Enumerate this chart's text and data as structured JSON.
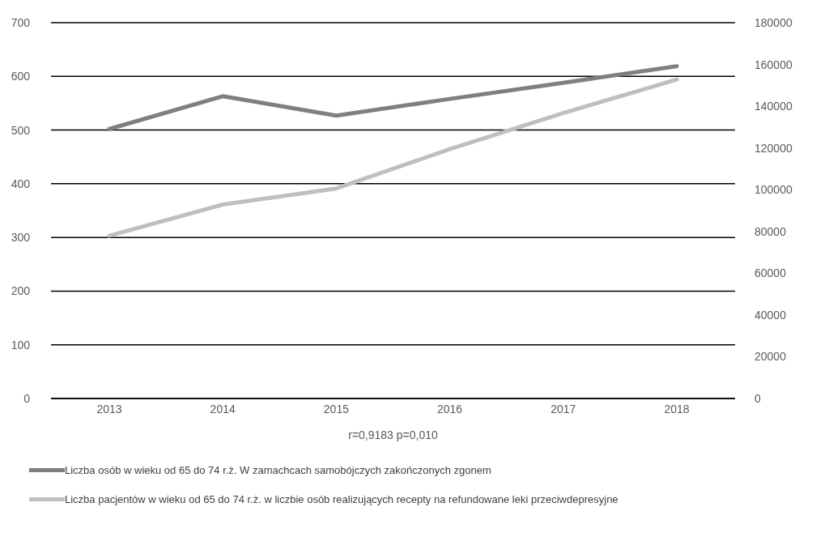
{
  "chart_data": {
    "type": "line",
    "categories": [
      "2013",
      "2014",
      "2015",
      "2016",
      "2017",
      "2018"
    ],
    "series": [
      {
        "name": "Liczba osób w wieku od 65 do 74 r.ż. W zamachcach samobójczych zakończonych zgonem",
        "color": "#7f7f7f",
        "values": [
          502,
          563,
          527,
          558,
          588,
          619
        ]
      },
      {
        "name": "Liczba pacjentów w wieku od 65 do 74 r.ż.  w liczbie osób realizujących recepty na refundowane leki przeciwdepresyjne",
        "color": "#bfbfbf",
        "values": [
          77900,
          92900,
          100600,
          119400,
          136700,
          152800
        ],
        "axis": "y2"
      }
    ],
    "ylim": [
      0,
      700
    ],
    "yticks": [
      0,
      100,
      200,
      300,
      400,
      500,
      600,
      700
    ],
    "y2lim": [
      0,
      180000
    ],
    "y2ticks": [
      0,
      20000,
      40000,
      60000,
      80000,
      100000,
      120000,
      140000,
      160000,
      180000
    ],
    "annotations": [
      "r=0,9183 p=0,010"
    ],
    "grid": "y",
    "legend": "bottom",
    "marker": "none",
    "line_style": "solid"
  }
}
